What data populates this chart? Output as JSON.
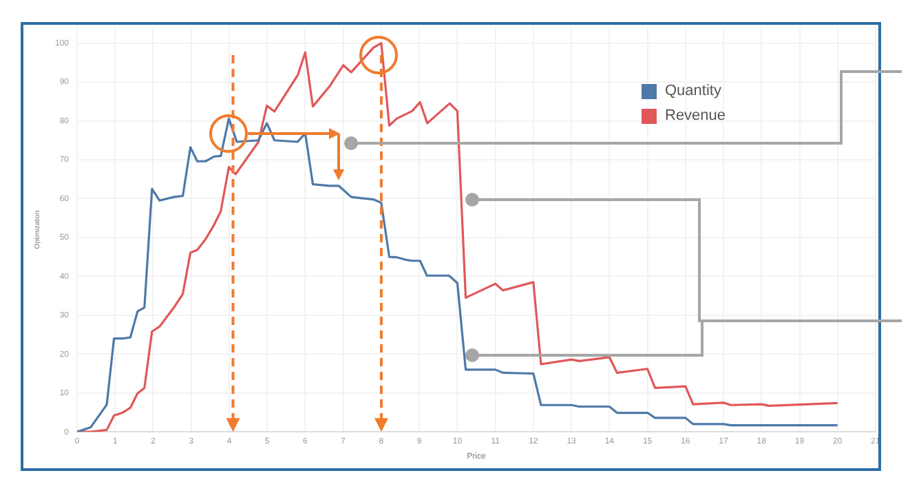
{
  "chart_data": {
    "type": "line",
    "xlabel": "Price",
    "ylabel": "Optimization",
    "xlim": [
      0,
      21
    ],
    "xticks": [
      0,
      1,
      2,
      3,
      4,
      5,
      6,
      7,
      8,
      9,
      10,
      11,
      12,
      13,
      14,
      15,
      16,
      17,
      18,
      19,
      20,
      21
    ],
    "ylim": [
      0,
      104
    ],
    "yticks": [
      0,
      10,
      20,
      30,
      40,
      50,
      60,
      70,
      80,
      90,
      100
    ],
    "grid": true,
    "legend": "top right",
    "ref_lines": [
      {
        "axis": "x",
        "value": 4.1,
        "color": "#f07b2d",
        "line_style": "dashed"
      },
      {
        "axis": "x",
        "value": 8,
        "color": "#f07b2d",
        "line_style": "dashed"
      }
    ],
    "marker": "none",
    "line_style": "solid",
    "series": [
      {
        "name": "Quantity",
        "color": "#4e79a7",
        "x": [
          0,
          0.36,
          0.78,
          0.97,
          1.21,
          1.4,
          1.59,
          1.77,
          1.97,
          2.17,
          2.54,
          2.78,
          2.98,
          3.16,
          3.38,
          3.6,
          3.78,
          3.99,
          4.2,
          4.77,
          4.99,
          5.19,
          5.8,
          6.0,
          6.2,
          6.64,
          6.88,
          7.21,
          7.49,
          7.79,
          8.0,
          8.21,
          8.41,
          8.63,
          8.81,
          9.02,
          9.2,
          9.78,
          10.0,
          10.22,
          11.0,
          11.2,
          12.0,
          12.2,
          13.0,
          13.2,
          14.0,
          14.2,
          15.0,
          15.2,
          16.0,
          16.2,
          17.0,
          17.2,
          20.0
        ],
        "values": [
          0,
          1.2,
          7,
          24,
          24,
          24.3,
          31,
          32,
          62.5,
          59.5,
          60.4,
          60.7,
          73.2,
          69.6,
          69.6,
          70.8,
          71,
          80.6,
          74.6,
          75,
          79.4,
          75,
          74.6,
          76.8,
          63.7,
          63.3,
          63.3,
          60.4,
          60.1,
          59.8,
          58.9,
          45,
          44.9,
          44.3,
          44,
          44,
          40.2,
          40.2,
          38.3,
          16,
          16,
          15.2,
          15,
          6.9,
          6.9,
          6.5,
          6.5,
          4.9,
          4.9,
          3.6,
          3.6,
          2,
          2,
          1.7,
          1.7
        ]
      },
      {
        "name": "Revenue",
        "color": "#e15759",
        "x": [
          0,
          0.36,
          0.78,
          0.97,
          1.21,
          1.4,
          1.59,
          1.77,
          1.97,
          2.17,
          2.54,
          2.78,
          2.98,
          3.16,
          3.38,
          3.6,
          3.78,
          3.99,
          4.17,
          4.77,
          4.99,
          5.19,
          5.8,
          6.0,
          6.2,
          6.64,
          7.0,
          7.21,
          7.79,
          8.0,
          8.21,
          8.41,
          8.81,
          9.02,
          9.21,
          9.8,
          10.0,
          10.22,
          11.0,
          11.2,
          12.0,
          12.2,
          13.0,
          13.2,
          14.0,
          14.2,
          15.0,
          15.2,
          16.0,
          16.2,
          17.0,
          17.2,
          18.0,
          18.2,
          20.0
        ],
        "values": [
          0,
          0,
          0.5,
          4.2,
          5,
          6.2,
          9.9,
          11.3,
          25.8,
          27.1,
          31.9,
          35.5,
          46.1,
          46.8,
          49.6,
          53.2,
          56.8,
          68.1,
          66.3,
          74.6,
          83.9,
          82.4,
          91.7,
          97.6,
          83.7,
          88.9,
          94.3,
          92.5,
          98.8,
          100,
          78.8,
          80.6,
          82.5,
          84.8,
          79.4,
          84.5,
          82.5,
          34.5,
          38.1,
          36.4,
          38.5,
          17.4,
          18.6,
          18.2,
          19.2,
          15.2,
          16.2,
          11.3,
          11.7,
          7.1,
          7.5,
          6.9,
          7.1,
          6.7,
          7.4
        ]
      }
    ]
  }
}
